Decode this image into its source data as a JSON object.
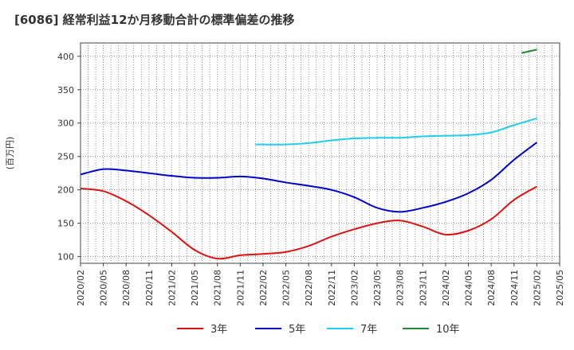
{
  "chart_data": {
    "type": "line",
    "title": "[6086]  経常利益12か月移動合計の標準偏差の推移",
    "ylabel": "(百万円)",
    "xlabel": "",
    "ylim": [
      90,
      420
    ],
    "yticks": [
      100,
      150,
      200,
      250,
      300,
      350,
      400
    ],
    "x_ticks": [
      "2020/02",
      "2020/05",
      "2020/08",
      "2020/11",
      "2021/02",
      "2021/05",
      "2021/08",
      "2021/11",
      "2022/02",
      "2022/05",
      "2022/08",
      "2022/11",
      "2023/02",
      "2023/05",
      "2023/08",
      "2023/11",
      "2024/02",
      "2024/05",
      "2024/08",
      "2024/11",
      "2025/02",
      "2025/05"
    ],
    "grid": true,
    "legend_position": "bottom",
    "series": [
      {
        "name": "3年",
        "color": "#dd1111",
        "x": [
          "2020/02",
          "2020/05",
          "2020/08",
          "2020/11",
          "2021/02",
          "2021/05",
          "2021/08",
          "2021/11",
          "2022/02",
          "2022/05",
          "2022/08",
          "2022/11",
          "2023/02",
          "2023/05",
          "2023/08",
          "2023/11",
          "2024/02",
          "2024/05",
          "2024/08",
          "2024/11",
          "2025/02"
        ],
        "values": [
          202,
          198,
          183,
          162,
          137,
          110,
          97,
          102,
          104,
          107,
          116,
          130,
          141,
          150,
          154,
          145,
          133,
          139,
          156,
          185,
          205
        ]
      },
      {
        "name": "5年",
        "color": "#0000cc",
        "x": [
          "2020/02",
          "2020/05",
          "2020/08",
          "2020/11",
          "2021/02",
          "2021/05",
          "2021/08",
          "2021/11",
          "2022/02",
          "2022/05",
          "2022/08",
          "2022/11",
          "2023/02",
          "2023/05",
          "2023/08",
          "2023/11",
          "2024/02",
          "2024/05",
          "2024/08",
          "2024/11",
          "2025/02"
        ],
        "values": [
          223,
          231,
          229,
          225,
          221,
          218,
          218,
          220,
          217,
          211,
          206,
          200,
          189,
          173,
          167,
          173,
          182,
          195,
          215,
          245,
          271
        ]
      },
      {
        "name": "7年",
        "color": "#22ccee",
        "x": [
          "2022/01",
          "2022/05",
          "2022/08",
          "2022/11",
          "2023/02",
          "2023/05",
          "2023/08",
          "2023/11",
          "2024/02",
          "2024/05",
          "2024/08",
          "2024/11",
          "2025/02"
        ],
        "values": [
          268,
          268,
          270,
          274,
          277,
          278,
          278,
          280,
          281,
          282,
          286,
          297,
          307
        ]
      },
      {
        "name": "10年",
        "color": "#228833",
        "x": [
          "2024/12",
          "2025/02"
        ],
        "values": [
          405,
          410
        ]
      }
    ]
  }
}
